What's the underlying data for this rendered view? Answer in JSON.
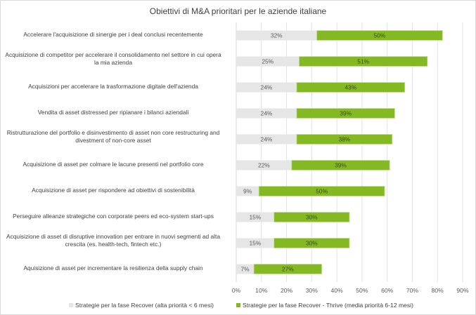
{
  "chart_data": {
    "type": "bar",
    "orientation": "horizontal",
    "stacked": true,
    "title": "Obiettivi di M&A prioritari per le aziende italiane",
    "xlabel": "",
    "ylabel": "",
    "xlim": [
      0,
      90
    ],
    "x_ticks": [
      "0%",
      "10%",
      "20%",
      "30%",
      "40%",
      "50%",
      "60%",
      "70%",
      "80%",
      "90%"
    ],
    "x_tick_values": [
      0,
      10,
      20,
      30,
      40,
      50,
      60,
      70,
      80,
      90
    ],
    "grid": true,
    "legend_position": "bottom",
    "categories": [
      "Accelerare l'acquisizione di sinergie per i deal conclusi recentemente",
      "Acquisizione di competitor per accelerare il consolidamento nel settore in cui opera la mia azienda",
      "Acquisizioni per accelerare la trasformazione digitale dell'azienda",
      "Vendita di asset distressed per ripianare i bilanci aziendali",
      "Ristrutturazione del portfolio e disinvestimento di asset non core restructuring and divestment of non-core asset",
      "Acquisizione di asset per colmare le lacune presenti nel portfolio core",
      "Acquisizione di  asset per rispondere ad obiettivi di sostenibilità",
      "Perseguire alleanze strategiche con corporate peers ed eco-system start-ups",
      "Acquisizione di asset di disruptive innovation per entrare in nuovi segmenti ad alta crescita (es. health-tech, fintech etc.)",
      "Aquisizione di asset per incrementare la resilienza della supply chain"
    ],
    "category_lines": [
      [
        "Accelerare l'acquisizione di sinergie per i deal conclusi recentemente"
      ],
      [
        "Acquisizione di competitor per accelerare il consolidamento nel settore in cui opera",
        "la mia azienda"
      ],
      [
        "Acquisizioni per accelerare la trasformazione digitale dell'azienda"
      ],
      [
        "Vendita di asset distressed per ripianare i bilanci aziendali"
      ],
      [
        "Ristrutturazione del portfolio e disinvestimento di asset non core restructuring and",
        "divestment of non-core asset"
      ],
      [
        "Acquisizione di asset per colmare le lacune presenti nel portfolio core"
      ],
      [
        "Acquisizione di  asset per rispondere ad obiettivi di sostenibilità"
      ],
      [
        "Perseguire alleanze strategiche con corporate peers ed eco-system start-ups"
      ],
      [
        "Acquisizione di asset di disruptive innovation per entrare in nuovi segmenti ad alta",
        "crescita (es. health-tech, fintech etc.)"
      ],
      [
        "Aquisizione di asset per incrementare la resilienza della supply chain"
      ]
    ],
    "series": [
      {
        "name": "Strategie per la fase Recover (alta priorità < 6 mesi)",
        "color": "#e7e6e6",
        "values": [
          32,
          25,
          24,
          24,
          24,
          22,
          9,
          15,
          15,
          7
        ],
        "labels": [
          "32%",
          "25%",
          "24%",
          "24%",
          "24%",
          "22%",
          "9%",
          "15%",
          "15%",
          "7%"
        ]
      },
      {
        "name": "Strategie per la fase Recover - Thrive (media priorità 6-12 mesi)",
        "color": "#84b924",
        "values": [
          50,
          51,
          43,
          39,
          38,
          39,
          50,
          30,
          30,
          27
        ],
        "labels": [
          "50%",
          "51%",
          "43%",
          "39%",
          "38%",
          "39%",
          "50%",
          "30%",
          "30%",
          "27%"
        ]
      }
    ]
  }
}
